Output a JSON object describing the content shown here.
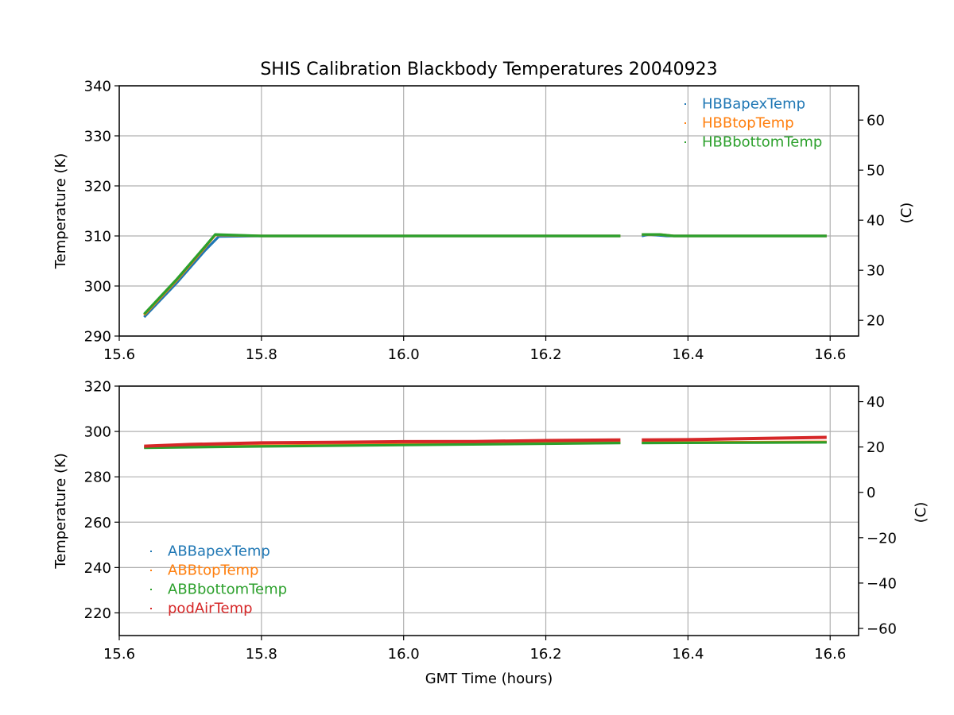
{
  "figure": {
    "title": "SHIS Calibration Blackbody Temperatures 20040923",
    "xlabel": "GMT Time (hours)"
  },
  "colors": {
    "blue": "#1f77b4",
    "orange": "#ff7f0e",
    "green": "#2ca02c",
    "red": "#d62728",
    "grid": "#b0b0b0"
  },
  "chart_data": [
    {
      "type": "scatter",
      "name": "hot-blackbody",
      "ylabel": "Temperature (K)",
      "ylabel_right": "(C)",
      "xlim": [
        15.6,
        16.64
      ],
      "ylim": [
        290,
        340
      ],
      "xticks": [
        15.6,
        15.8,
        16.0,
        16.2,
        16.4,
        16.6
      ],
      "xtick_labels": [
        "15.6",
        "15.8",
        "16.0",
        "16.2",
        "16.4",
        "16.6"
      ],
      "yticks": [
        290,
        300,
        310,
        320,
        330,
        340
      ],
      "ytick_labels": [
        "290",
        "300",
        "310",
        "320",
        "330",
        "340"
      ],
      "right_ticks_c": [
        20,
        30,
        40,
        50,
        60
      ],
      "right_tick_labels": [
        "20",
        "30",
        "40",
        "50",
        "60"
      ],
      "grid": true,
      "legend_position": "top-right",
      "series": [
        {
          "name": "HBBapexTemp",
          "color": "#1f77b4",
          "segments": [
            [
              [
                15.635,
                293.8
              ],
              [
                15.68,
                300.5
              ],
              [
                15.72,
                307.0
              ],
              [
                15.74,
                309.9
              ],
              [
                15.8,
                310.0
              ],
              [
                16.0,
                310.0
              ],
              [
                16.2,
                310.0
              ],
              [
                16.305,
                310.0
              ]
            ],
            [
              [
                16.335,
                310.0
              ],
              [
                16.345,
                310.3
              ],
              [
                16.37,
                310.0
              ],
              [
                16.5,
                310.0
              ],
              [
                16.595,
                310.0
              ]
            ]
          ]
        },
        {
          "name": "HBBtopTemp",
          "color": "#ff7f0e",
          "segments": [
            [
              [
                15.635,
                294.2
              ],
              [
                15.68,
                301.0
              ],
              [
                15.72,
                307.6
              ],
              [
                15.735,
                310.2
              ],
              [
                15.8,
                310.0
              ],
              [
                16.0,
                310.0
              ],
              [
                16.2,
                310.0
              ],
              [
                16.305,
                310.0
              ]
            ],
            [
              [
                16.335,
                310.3
              ],
              [
                16.36,
                310.3
              ],
              [
                16.38,
                310.0
              ],
              [
                16.5,
                310.0
              ],
              [
                16.595,
                310.0
              ]
            ]
          ]
        },
        {
          "name": "HBBbottomTemp",
          "color": "#2ca02c",
          "segments": [
            [
              [
                15.635,
                294.4
              ],
              [
                15.68,
                301.2
              ],
              [
                15.72,
                307.8
              ],
              [
                15.735,
                310.3
              ],
              [
                15.8,
                310.0
              ],
              [
                16.0,
                310.0
              ],
              [
                16.2,
                310.0
              ],
              [
                16.305,
                310.0
              ]
            ],
            [
              [
                16.335,
                310.3
              ],
              [
                16.36,
                310.3
              ],
              [
                16.38,
                310.0
              ],
              [
                16.5,
                310.0
              ],
              [
                16.595,
                310.0
              ]
            ]
          ]
        }
      ]
    },
    {
      "type": "scatter",
      "name": "ambient-blackbody",
      "ylabel": "Temperature (K)",
      "ylabel_right": "(C)",
      "xlim": [
        15.6,
        16.64
      ],
      "ylim": [
        210,
        320
      ],
      "xticks": [
        15.6,
        15.8,
        16.0,
        16.2,
        16.4,
        16.6
      ],
      "xtick_labels": [
        "15.6",
        "15.8",
        "16.0",
        "16.2",
        "16.4",
        "16.6"
      ],
      "yticks": [
        220,
        240,
        260,
        280,
        300,
        320
      ],
      "ytick_labels": [
        "220",
        "240",
        "260",
        "280",
        "300",
        "320"
      ],
      "right_ticks_c": [
        -60,
        -40,
        -20,
        0,
        20,
        40
      ],
      "right_tick_labels": [
        "−60",
        "−40",
        "−20",
        "0",
        "20",
        "40"
      ],
      "grid": true,
      "legend_position": "bottom-left",
      "series": [
        {
          "name": "ABBapexTemp",
          "color": "#1f77b4",
          "segments": [
            [
              [
                15.635,
                293.0
              ],
              [
                15.8,
                293.6
              ],
              [
                16.0,
                294.2
              ],
              [
                16.2,
                294.8
              ],
              [
                16.305,
                295.0
              ]
            ],
            [
              [
                16.335,
                295.0
              ],
              [
                16.5,
                295.2
              ],
              [
                16.595,
                295.3
              ]
            ]
          ]
        },
        {
          "name": "ABBtopTemp",
          "color": "#ff7f0e",
          "segments": [
            [
              [
                15.635,
                293.1
              ],
              [
                15.8,
                293.7
              ],
              [
                16.0,
                294.3
              ],
              [
                16.2,
                294.9
              ],
              [
                16.305,
                295.1
              ]
            ],
            [
              [
                16.335,
                295.1
              ],
              [
                16.5,
                295.3
              ],
              [
                16.595,
                295.4
              ]
            ]
          ]
        },
        {
          "name": "ABBbottomTemp",
          "color": "#2ca02c",
          "segments": [
            [
              [
                15.635,
                292.8
              ],
              [
                15.8,
                293.4
              ],
              [
                16.0,
                294.0
              ],
              [
                16.2,
                294.6
              ],
              [
                16.305,
                294.9
              ]
            ],
            [
              [
                16.335,
                294.9
              ],
              [
                16.5,
                295.1
              ],
              [
                16.595,
                295.2
              ]
            ]
          ]
        },
        {
          "name": "podAirTemp",
          "color": "#d62728",
          "segments": [
            [
              [
                15.635,
                293.5
              ],
              [
                15.7,
                294.3
              ],
              [
                15.8,
                295.0
              ],
              [
                15.9,
                295.2
              ],
              [
                16.0,
                295.5
              ],
              [
                16.1,
                295.6
              ],
              [
                16.2,
                296.0
              ],
              [
                16.305,
                296.3
              ]
            ],
            [
              [
                16.335,
                296.3
              ],
              [
                16.4,
                296.4
              ],
              [
                16.5,
                296.9
              ],
              [
                16.595,
                297.4
              ]
            ]
          ]
        }
      ]
    }
  ]
}
